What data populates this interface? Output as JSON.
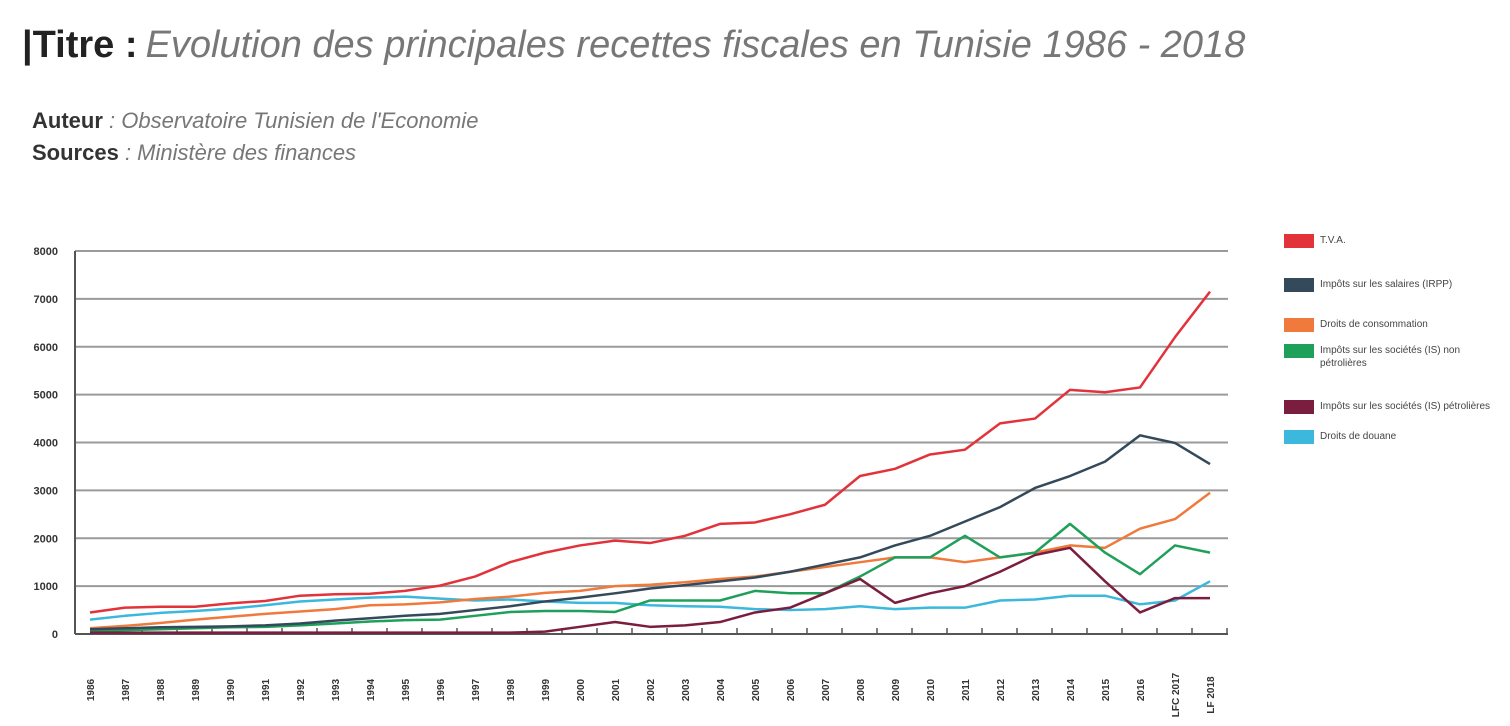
{
  "header": {
    "title_label": "|Titre :",
    "title_text": "Evolution des principales recettes fiscales en Tunisie 1986 - 2018",
    "author_label": "Auteur",
    "author_value": ": Observatoire Tunisien de l'Economie",
    "sources_label": "Sources",
    "sources_value": ": Ministère des finances"
  },
  "chart_data": {
    "type": "line",
    "title": "Evolution des principales recettes fiscales en Tunisie 1986 - 2018",
    "xlabel": "",
    "ylabel": "",
    "ylim": [
      0,
      8000
    ],
    "yticks": [
      0,
      1000,
      2000,
      3000,
      4000,
      5000,
      6000,
      7000,
      8000
    ],
    "grid": true,
    "legend_position": "right",
    "categories": [
      "1986",
      "1987",
      "1988",
      "1989",
      "1990",
      "1991",
      "1992",
      "1993",
      "1994",
      "1995",
      "1996",
      "1997",
      "1998",
      "1999",
      "2000",
      "2001",
      "2002",
      "2003",
      "2004",
      "2005",
      "2006",
      "2007",
      "2008",
      "2009",
      "2010",
      "2011",
      "2012",
      "2013",
      "2014",
      "2015",
      "2016",
      "LFC 2017",
      "LF 2018"
    ],
    "series": [
      {
        "name": "T.V.A.",
        "color": "#e2333b",
        "values": [
          450,
          550,
          570,
          570,
          640,
          690,
          800,
          830,
          840,
          900,
          1010,
          1200,
          1500,
          1700,
          1850,
          1950,
          1900,
          2050,
          2300,
          2330,
          2500,
          2700,
          3300,
          3450,
          3750,
          3850,
          4400,
          4500,
          5100,
          5050,
          5150,
          6200,
          7150
        ]
      },
      {
        "name": "Impôts sur les salaires (IRPP)",
        "color": "#34495a",
        "values": [
          100,
          120,
          140,
          150,
          160,
          180,
          220,
          280,
          330,
          380,
          420,
          500,
          580,
          680,
          760,
          850,
          950,
          1020,
          1100,
          1180,
          1300,
          1450,
          1600,
          1850,
          2050,
          2350,
          2650,
          3050,
          3300,
          3600,
          4150,
          3990,
          3550
        ]
      },
      {
        "name": "Droits de consommation",
        "color": "#ef7a3c",
        "values": [
          120,
          170,
          230,
          300,
          360,
          420,
          470,
          520,
          600,
          620,
          660,
          730,
          780,
          860,
          900,
          1000,
          1030,
          1080,
          1150,
          1200,
          1300,
          1400,
          1500,
          1600,
          1600,
          1500,
          1600,
          1700,
          1850,
          1800,
          2200,
          2400,
          2950
        ]
      },
      {
        "name": "Impôts sur les sociétés (IS) non pétrolières",
        "color": "#1fa05a",
        "values": [
          60,
          80,
          100,
          120,
          140,
          150,
          180,
          220,
          260,
          290,
          300,
          380,
          460,
          480,
          480,
          460,
          700,
          700,
          700,
          900,
          850,
          850,
          1200,
          1600,
          1600,
          2050,
          1600,
          1700,
          2300,
          1700,
          1250,
          1850,
          1700
        ]
      },
      {
        "name": "Impôts sur les sociétés (IS) pétrolières",
        "color": "#7b1d3f",
        "values": [
          30,
          30,
          30,
          30,
          30,
          30,
          30,
          30,
          30,
          30,
          30,
          30,
          30,
          50,
          150,
          250,
          150,
          180,
          250,
          450,
          550,
          850,
          1150,
          650,
          850,
          1000,
          1300,
          1650,
          1800,
          1100,
          450,
          750,
          750
        ]
      },
      {
        "name": "Droits de douane",
        "color": "#3bb8dc",
        "values": [
          300,
          380,
          440,
          480,
          530,
          600,
          680,
          720,
          760,
          780,
          740,
          700,
          720,
          680,
          650,
          650,
          600,
          580,
          570,
          520,
          500,
          520,
          580,
          520,
          550,
          550,
          700,
          720,
          800,
          800,
          620,
          700,
          1100
        ]
      }
    ]
  }
}
